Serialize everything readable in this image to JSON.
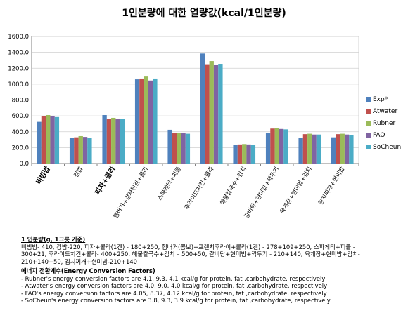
{
  "chart_data": {
    "type": "bar",
    "title": "1인분량에 대한 열량값(kcal/1인분량)",
    "categories": [
      "비빔밥",
      "김밥",
      "피자+콜라",
      "햄버거+감자튀김+콜라",
      "스파게티+피클",
      "후라이드치킨+콜라",
      "해물칼국수+김치",
      "갈비탕+현미밥+깍두기",
      "육개장+현미밥+김치",
      "김치찌개+현미밥"
    ],
    "category_bold": [
      true,
      false,
      true,
      false,
      false,
      false,
      false,
      false,
      false,
      false
    ],
    "series": [
      {
        "name": "Exp*",
        "color": "#4f81bd",
        "values": [
          525,
          320,
          610,
          1060,
          425,
          1385,
          230,
          380,
          325,
          330
        ]
      },
      {
        "name": "Atwater",
        "color": "#c0504d",
        "values": [
          600,
          330,
          560,
          1070,
          380,
          1250,
          240,
          440,
          370,
          370
        ]
      },
      {
        "name": "Rubner",
        "color": "#9bbb59",
        "values": [
          610,
          345,
          575,
          1095,
          385,
          1290,
          245,
          450,
          375,
          375
        ]
      },
      {
        "name": "FAO",
        "color": "#8064a2",
        "values": [
          595,
          335,
          565,
          1045,
          380,
          1240,
          240,
          435,
          365,
          365
        ]
      },
      {
        "name": "SoCheun",
        "color": "#4bacc6",
        "values": [
          585,
          325,
          560,
          1070,
          375,
          1255,
          235,
          430,
          365,
          360
        ]
      }
    ],
    "ylim": [
      0,
      1600
    ],
    "yticks": [
      "0.0",
      "200.0",
      "400.0",
      "600.0",
      "800.0",
      "1000.0",
      "1200.0",
      "1400.0",
      "1600.0"
    ],
    "grid": true,
    "legend": "right"
  },
  "notes": {
    "serving_heading": "1 인분량(g, 1그릇 기준)",
    "serving_lines": [
      "비빔밥- 410, 김밥-220, 피자+콜라(1캔) - 180+250, 햄버거(콤보)+프렌치후라이+콜라(1캔) - 278+109+250, 스파게티+피클 -",
      "300+21, 후라이드치킨+콜라- 400+250, 해물칼국수+김치 – 500+50, 갈비탕+현미밥+깍두기 - 210+140, 육개장+현미밥+김치-",
      "210+140+50, 김치찌개+현미밥-210+140"
    ],
    "energy_heading": "에너지 전환계수(Energy Conversion Factors)",
    "factor_lines": [
      "- Rubner's energy conversion factors are 4.1, 9.3, 4.1 kcal/g for protein, fat ,carbohydrate, respectively",
      "- Atwater's energy conversion factors are 4.0, 9.0, 4.0 kcal/g for protein, fat ,carbohydrate, respectively",
      "- FAO's energy conversion factors are 4.05, 8.37, 4.12 kcal/g for protein, fat ,carbohydrate, respectively",
      "- SoCheun's energy conversion factors are 3.8, 9.3, 3.9 kcal/g for protein, fat ,carbohydrate, respectively"
    ]
  }
}
